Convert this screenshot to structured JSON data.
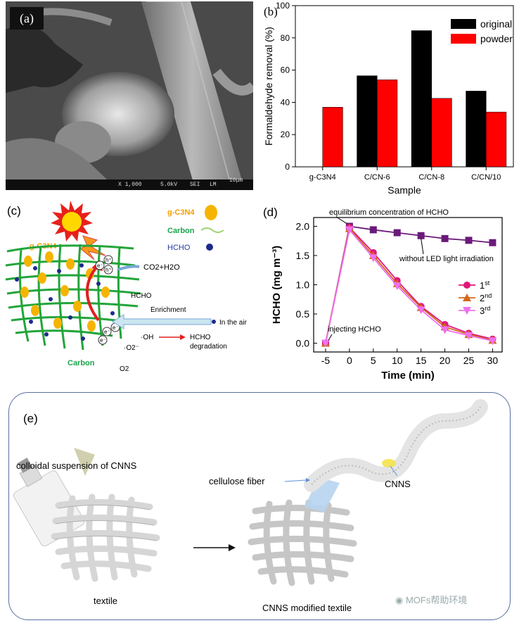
{
  "panel_a": {
    "label": "(a)",
    "scale_bar_text": "10μm",
    "info_bar": {
      "mag": "X 1,000",
      "voltage": "5.0kV",
      "mode": "SEI",
      "detector": "LM"
    }
  },
  "panel_b": {
    "label": "(b)",
    "chart_data": {
      "type": "bar",
      "categories": [
        "g-C3N4",
        "C/CN-6",
        "C/CN-8",
        "C/CN/10"
      ],
      "series": [
        {
          "name": "original",
          "values": [
            0,
            56.5,
            84.5,
            47
          ],
          "color": "#000000"
        },
        {
          "name": "powder",
          "values": [
            37,
            54,
            42.5,
            34
          ],
          "color": "#ff0000"
        }
      ],
      "xlabel": "Sample",
      "ylabel": "Formaldehyde removal (%)",
      "ylim": [
        0,
        100
      ],
      "yticks": [
        0,
        20,
        40,
        60,
        80,
        100
      ],
      "legend": "top-right"
    }
  },
  "panel_c": {
    "label": "(c)",
    "legend": {
      "gcn": "g-C3N4",
      "carbon": "Carbon",
      "hcho": "HCHO"
    },
    "gcn_label": "g-C3N4",
    "products": "CO2+H2O",
    "hcho": "HCHO",
    "enrichment": "Enrichment",
    "in_air": "In the air",
    "oh": "·OH",
    "degradation_line1": "HCHO",
    "degradation_line2": "degradation",
    "superoxide": "·O2⁻",
    "o2": "O2",
    "carbon_bottom": "Carbon",
    "electron": "e⁻",
    "hole": "h⁺"
  },
  "panel_d": {
    "label": "(d)",
    "chart_data": {
      "type": "line",
      "x": [
        -5,
        0,
        5,
        10,
        15,
        20,
        25,
        30
      ],
      "series": [
        {
          "name": "without LED light irradiation",
          "values": [
            0.0,
            2.0,
            1.94,
            1.89,
            1.84,
            1.79,
            1.76,
            1.72
          ],
          "color": "#6a1a7a",
          "marker": "square"
        },
        {
          "name": "1st",
          "values": [
            0.0,
            1.98,
            1.55,
            1.07,
            0.63,
            0.32,
            0.17,
            0.07
          ],
          "color": "#e0187a",
          "marker": "circle"
        },
        {
          "name": "2nd",
          "values": [
            0.0,
            1.96,
            1.5,
            1.02,
            0.61,
            0.28,
            0.15,
            0.05
          ],
          "color": "#d2691e",
          "marker": "triangle-up"
        },
        {
          "name": "3rd",
          "values": [
            0.0,
            1.94,
            1.46,
            0.98,
            0.57,
            0.23,
            0.13,
            0.04
          ],
          "color": "#ee70ee",
          "marker": "triangle-down"
        }
      ],
      "legend_labels": [
        {
          "base": "1",
          "sup": "st"
        },
        {
          "base": "2",
          "sup": "nd"
        },
        {
          "base": "3",
          "sup": "rd"
        }
      ],
      "xlabel": "Time (min)",
      "ylabel": "HCHO (mg m⁻³)",
      "xlim": [
        -7.5,
        32
      ],
      "ylim": [
        -0.15,
        2.15
      ],
      "xticks": [
        -5,
        0,
        5,
        10,
        15,
        20,
        25,
        30
      ],
      "yticks": [
        0.0,
        0.5,
        1.0,
        1.5,
        2.0
      ],
      "annotations": {
        "equilibrium": "equilibrium concentration of HCHO",
        "no_light": "without LED light irradiation",
        "injecting": "injecting HCHO"
      }
    }
  },
  "panel_e": {
    "label": "(e)",
    "colloidal": "colloidal suspension of CNNS",
    "cellulose": "cellulose fiber",
    "cnns": "CNNS",
    "textile": "textile",
    "modified": "CNNS modified textile"
  },
  "watermark": "MOFs帮助环境"
}
